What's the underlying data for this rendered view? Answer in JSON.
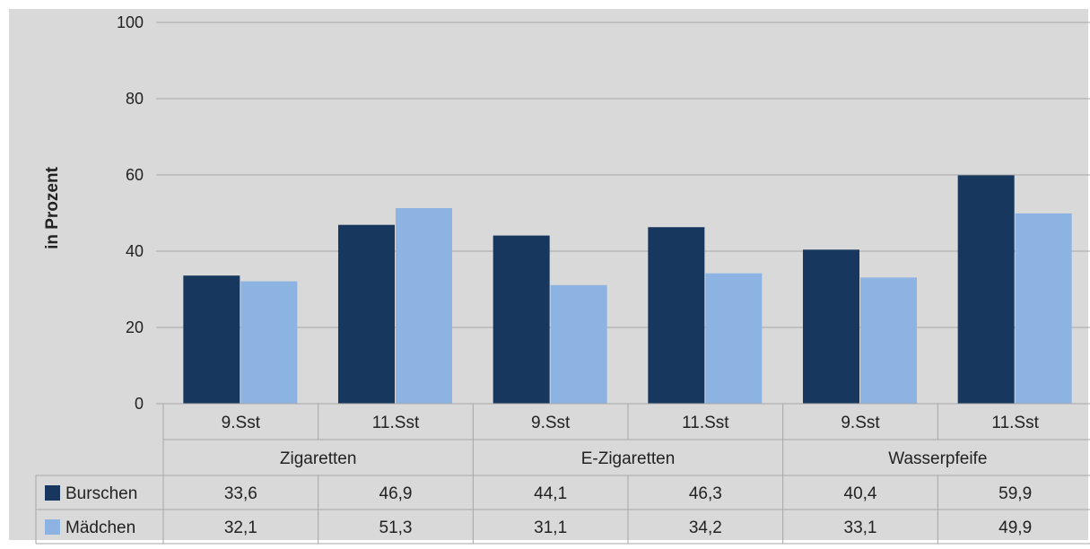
{
  "chart_data": {
    "type": "bar",
    "title": "",
    "xlabel": "",
    "ylabel": "in Prozent",
    "ylim": [
      0,
      100
    ],
    "yticks": [
      0,
      20,
      40,
      60,
      80,
      100
    ],
    "grid": true,
    "legend": "data-table-left",
    "groups": [
      {
        "label": "Zigaretten",
        "categories": [
          "9.Sst",
          "11.Sst"
        ]
      },
      {
        "label": "E-Zigaretten",
        "categories": [
          "9.Sst",
          "11.Sst"
        ]
      },
      {
        "label": "Wasserpfeife",
        "categories": [
          "9.Sst",
          "11.Sst"
        ]
      }
    ],
    "categories": [
      "9.Sst",
      "11.Sst",
      "9.Sst",
      "11.Sst",
      "9.Sst",
      "11.Sst"
    ],
    "series": [
      {
        "name": "Burschen",
        "color": "#17375e",
        "values": [
          33.6,
          46.9,
          44.1,
          46.3,
          40.4,
          59.9
        ],
        "labels": [
          "33,6",
          "46,9",
          "44,1",
          "46,3",
          "40,4",
          "59,9"
        ]
      },
      {
        "name": "Mädchen",
        "color": "#8db3e2",
        "values": [
          32.1,
          51.3,
          31.1,
          34.2,
          33.1,
          49.9
        ],
        "labels": [
          "32,1",
          "51,3",
          "31,1",
          "34,2",
          "33,1",
          "49,9"
        ]
      }
    ],
    "plot_background": "#d9d9d9",
    "gridline_color": "#a6a6a6"
  }
}
